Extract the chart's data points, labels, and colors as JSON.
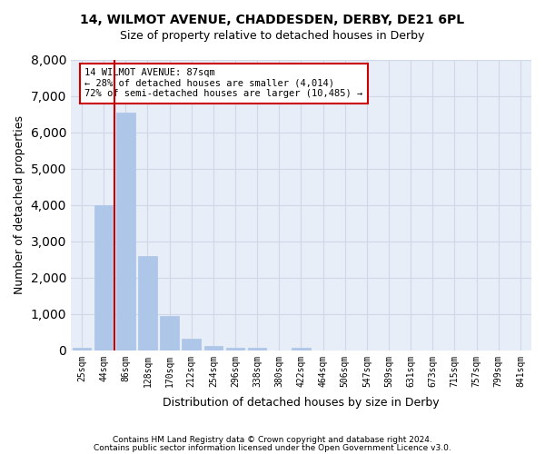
{
  "title_line1": "14, WILMOT AVENUE, CHADDESDEN, DERBY, DE21 6PL",
  "title_line2": "Size of property relative to detached houses in Derby",
  "xlabel": "Distribution of detached houses by size in Derby",
  "ylabel": "Number of detached properties",
  "bar_values": [
    70,
    4000,
    6550,
    2600,
    950,
    320,
    110,
    80,
    60,
    0,
    60,
    0,
    0,
    0,
    0,
    0,
    0,
    0,
    0,
    0,
    0
  ],
  "bar_labels": [
    "25sqm",
    "44sqm",
    "86sqm",
    "128sqm",
    "170sqm",
    "212sqm",
    "254sqm",
    "296sqm",
    "338sqm",
    "380sqm",
    "422sqm",
    "464sqm",
    "506sqm",
    "547sqm",
    "589sqm",
    "631sqm",
    "673sqm",
    "715sqm",
    "757sqm",
    "799sqm",
    "841sqm"
  ],
  "bar_color": "#aec6e8",
  "bar_edge_color": "#aec6e8",
  "vline_x_idx": 2,
  "vline_color": "#cc0000",
  "annotation_text_line1": "14 WILMOT AVENUE: 87sqm",
  "annotation_text_line2": "← 28% of detached houses are smaller (4,014)",
  "annotation_text_line3": "72% of semi-detached houses are larger (10,485) →",
  "annotation_box_color": "#ffffff",
  "annotation_border_color": "#cc0000",
  "grid_color": "#d0d8e8",
  "background_color": "#e8eef8",
  "footer_line1": "Contains HM Land Registry data © Crown copyright and database right 2024.",
  "footer_line2": "Contains public sector information licensed under the Open Government Licence v3.0.",
  "ylim": [
    0,
    8000
  ],
  "yticks": [
    0,
    1000,
    2000,
    3000,
    4000,
    5000,
    6000,
    7000,
    8000
  ]
}
